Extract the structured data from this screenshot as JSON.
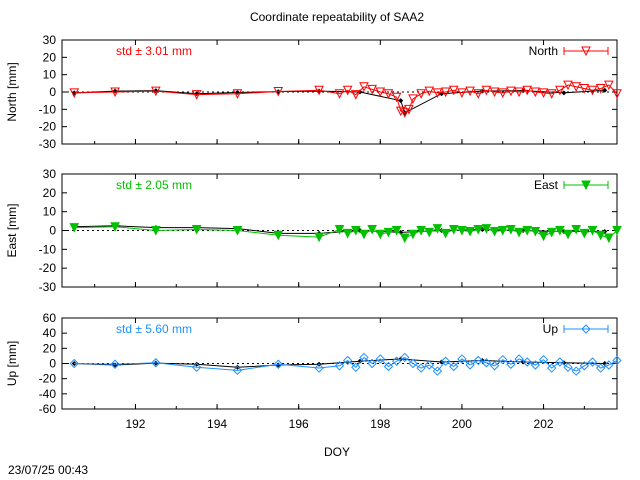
{
  "title": "Coordinate repeatability of SAA2",
  "xlabel": "DOY",
  "timestamp": "23/07/25 00:43",
  "chart_data": [
    {
      "type": "line",
      "ylabel": "North [mm]",
      "ylim": [
        -30,
        30
      ],
      "yticks": [
        "30",
        "20",
        "10",
        "0",
        "-10",
        "-20",
        "-30"
      ],
      "xlim": [
        190.2,
        203.8
      ],
      "xticks": [
        "192",
        "194",
        "196",
        "198",
        "200",
        "202"
      ],
      "std_label": "std ± 3.01 mm",
      "legend": "North",
      "legend_position": "top-right",
      "color": "#ff0000",
      "marker": "triangle-down-open",
      "series": [
        {
          "x": [
            190.5,
            191.5,
            192.5,
            193.5,
            194.5,
            195.5,
            196.5,
            197.5,
            198.5,
            198.6,
            199.5,
            200.5,
            201.5,
            202.5,
            203.5
          ],
          "values": [
            -0.5,
            0.5,
            0.8,
            -1.0,
            -0.3,
            0.2,
            0.5,
            0.0,
            -5.0,
            -12.0,
            -1.0,
            0.5,
            0.8,
            -0.5,
            1.0
          ]
        },
        {
          "x": [
            190.5,
            191.5,
            192.5,
            193.5,
            194.5,
            195.5,
            196.5,
            197.0,
            197.2,
            197.4,
            197.6,
            197.8,
            198.0,
            198.2,
            198.4,
            198.5,
            198.6,
            198.7,
            198.8,
            199.0,
            199.2,
            199.4,
            199.6,
            199.8,
            200.0,
            200.2,
            200.4,
            200.6,
            200.8,
            201.0,
            201.2,
            201.4,
            201.6,
            201.8,
            202.0,
            202.2,
            202.4,
            202.6,
            202.8,
            203.0,
            203.2,
            203.4,
            203.6,
            203.8
          ],
          "values": [
            -0.5,
            0.0,
            0.5,
            -1.5,
            -1.0,
            0.3,
            1.0,
            -1.0,
            1.0,
            -1.5,
            3.0,
            1.5,
            0.0,
            -1.0,
            -3.0,
            -11.0,
            -12.0,
            -10.0,
            -4.0,
            -1.0,
            0.5,
            -0.5,
            0.0,
            1.0,
            -0.5,
            0.5,
            -1.0,
            1.0,
            0.0,
            -0.5,
            0.5,
            0.0,
            1.0,
            0.0,
            -0.5,
            -1.0,
            1.0,
            4.0,
            3.0,
            2.0,
            1.0,
            2.0,
            4.0,
            -1.0
          ]
        }
      ]
    },
    {
      "type": "line",
      "ylabel": "East [mm]",
      "ylim": [
        -30,
        30
      ],
      "yticks": [
        "30",
        "20",
        "10",
        "0",
        "-10",
        "-20",
        "-30"
      ],
      "xlim": [
        190.2,
        203.8
      ],
      "xticks": [
        "192",
        "194",
        "196",
        "198",
        "200",
        "202"
      ],
      "std_label": "std ± 2.05 mm",
      "legend": "East",
      "legend_position": "top-right",
      "color": "#00c000",
      "marker": "triangle-down-filled",
      "series": [
        {
          "x": [
            190.5,
            191.5,
            192.5,
            193.5,
            194.5,
            195.5,
            196.5,
            197.5,
            198.5,
            199.5,
            200.5,
            201.5,
            202.5,
            203.5
          ],
          "values": [
            2.0,
            2.5,
            1.5,
            1.5,
            1.0,
            -1.5,
            -1.5,
            0.0,
            -1.0,
            0.0,
            0.5,
            0.0,
            -0.5,
            -0.5
          ]
        },
        {
          "x": [
            190.5,
            191.5,
            192.5,
            193.5,
            194.5,
            195.5,
            196.5,
            197.0,
            197.2,
            197.4,
            197.6,
            197.8,
            198.0,
            198.2,
            198.4,
            198.6,
            198.8,
            199.0,
            199.2,
            199.4,
            199.6,
            199.8,
            200.0,
            200.2,
            200.4,
            200.6,
            200.8,
            201.0,
            201.2,
            201.4,
            201.6,
            201.8,
            202.0,
            202.2,
            202.4,
            202.6,
            202.8,
            203.0,
            203.2,
            203.4,
            203.6,
            203.8
          ],
          "values": [
            1.5,
            2.0,
            0.0,
            0.5,
            0.0,
            -2.5,
            -3.5,
            0.5,
            -1.5,
            0.0,
            -2.0,
            0.5,
            -2.0,
            -1.0,
            0.0,
            -4.0,
            -2.0,
            0.0,
            -1.0,
            1.0,
            -1.5,
            0.5,
            0.0,
            -0.5,
            0.5,
            1.0,
            -0.5,
            0.0,
            0.5,
            -1.0,
            0.0,
            -0.5,
            -3.0,
            -1.0,
            0.0,
            -2.0,
            0.5,
            -1.5,
            0.0,
            -2.5,
            -4.0,
            0.0
          ]
        }
      ]
    },
    {
      "type": "line",
      "ylabel": "Up [mm]",
      "ylim": [
        -60,
        60
      ],
      "yticks": [
        "60",
        "40",
        "20",
        "0",
        "-20",
        "-40",
        "-60"
      ],
      "xlim": [
        190.2,
        203.8
      ],
      "xticks": [
        "192",
        "194",
        "196",
        "198",
        "200",
        "202"
      ],
      "std_label": "std ± 5.60 mm",
      "legend": "Up",
      "legend_position": "top-right",
      "color": "#1e90ff",
      "marker": "diamond-open",
      "series": [
        {
          "x": [
            190.5,
            191.5,
            192.5,
            193.5,
            194.5,
            195.5,
            196.5,
            197.5,
            198.5,
            199.5,
            200.5,
            201.5,
            202.5,
            203.5
          ],
          "values": [
            0.0,
            -2.0,
            0.5,
            -1.0,
            -5.0,
            -2.0,
            -1.0,
            3.0,
            6.0,
            2.0,
            4.0,
            2.0,
            1.0,
            0.0
          ]
        },
        {
          "x": [
            190.5,
            191.5,
            192.5,
            193.5,
            194.5,
            195.5,
            196.5,
            197.0,
            197.2,
            197.4,
            197.6,
            197.8,
            198.0,
            198.2,
            198.4,
            198.6,
            198.8,
            199.0,
            199.2,
            199.4,
            199.6,
            199.8,
            200.0,
            200.2,
            200.4,
            200.6,
            200.8,
            201.0,
            201.2,
            201.4,
            201.6,
            201.8,
            202.0,
            202.2,
            202.4,
            202.6,
            202.8,
            203.0,
            203.2,
            203.4,
            203.6,
            203.8
          ],
          "values": [
            0.0,
            -1.0,
            1.0,
            -5.0,
            -9.0,
            -1.0,
            -6.0,
            -3.0,
            4.0,
            -5.0,
            8.0,
            0.0,
            6.0,
            -4.0,
            3.0,
            8.0,
            0.0,
            -6.0,
            -2.0,
            -10.0,
            3.0,
            -4.0,
            6.0,
            -2.0,
            4.0,
            1.0,
            -3.0,
            5.0,
            -1.0,
            6.0,
            2.0,
            -2.0,
            5.0,
            -6.0,
            2.0,
            -5.0,
            -10.0,
            -3.0,
            2.0,
            -6.0,
            -2.0,
            4.0
          ]
        }
      ]
    }
  ]
}
